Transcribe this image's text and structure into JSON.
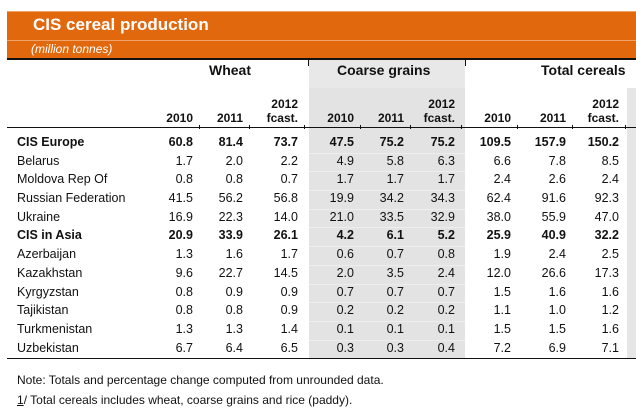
{
  "title": "CIS cereal production",
  "subtitle": "(million tonnes)",
  "groups": [
    {
      "label": "Wheat"
    },
    {
      "label": "Coarse grains"
    },
    {
      "label": "Total cereals"
    }
  ],
  "columns": [
    {
      "line1": "",
      "line2": "2010"
    },
    {
      "line1": "",
      "line2": "2011"
    },
    {
      "line1": "2012",
      "line2": "fcast."
    },
    {
      "line1": "",
      "line2": "2010"
    },
    {
      "line1": "",
      "line2": "2011"
    },
    {
      "line1": "2012",
      "line2": "fcast."
    },
    {
      "line1": "",
      "line2": "2010"
    },
    {
      "line1": "",
      "line2": "2011"
    },
    {
      "line1": "2012",
      "line2": "fcast."
    }
  ],
  "rows": [
    {
      "name": "CIS Europe",
      "bold": true,
      "values": [
        "60.8",
        "81.4",
        "73.7",
        "47.5",
        "75.2",
        "75.2",
        "109.5",
        "157.9",
        "150.2"
      ]
    },
    {
      "name": "Belarus",
      "bold": false,
      "values": [
        "1.7",
        "2.0",
        "2.2",
        "4.9",
        "5.8",
        "6.3",
        "6.6",
        "7.8",
        "8.5"
      ]
    },
    {
      "name": "Moldova Rep Of",
      "bold": false,
      "values": [
        "0.8",
        "0.8",
        "0.7",
        "1.7",
        "1.7",
        "1.7",
        "2.4",
        "2.6",
        "2.4"
      ]
    },
    {
      "name": "Russian Federation",
      "bold": false,
      "values": [
        "41.5",
        "56.2",
        "56.8",
        "19.9",
        "34.2",
        "34.3",
        "62.4",
        "91.6",
        "92.3"
      ]
    },
    {
      "name": "Ukraine",
      "bold": false,
      "values": [
        "16.9",
        "22.3",
        "14.0",
        "21.0",
        "33.5",
        "32.9",
        "38.0",
        "55.9",
        "47.0"
      ]
    },
    {
      "name": "CIS in Asia",
      "bold": true,
      "values": [
        "20.9",
        "33.9",
        "26.1",
        "4.2",
        "6.1",
        "5.2",
        "25.9",
        "40.9",
        "32.2"
      ]
    },
    {
      "name": "Azerbaijan",
      "bold": false,
      "values": [
        "1.3",
        "1.6",
        "1.7",
        "0.6",
        "0.7",
        "0.8",
        "1.9",
        "2.4",
        "2.5"
      ]
    },
    {
      "name": "Kazakhstan",
      "bold": false,
      "values": [
        "9.6",
        "22.7",
        "14.5",
        "2.0",
        "3.5",
        "2.4",
        "12.0",
        "26.6",
        "17.3"
      ]
    },
    {
      "name": "Kyrgyzstan",
      "bold": false,
      "values": [
        "0.8",
        "0.9",
        "0.9",
        "0.7",
        "0.7",
        "0.7",
        "1.5",
        "1.6",
        "1.6"
      ]
    },
    {
      "name": "Tajikistan",
      "bold": false,
      "values": [
        "0.8",
        "0.8",
        "0.9",
        "0.2",
        "0.2",
        "0.2",
        "1.1",
        "1.0",
        "1.2"
      ]
    },
    {
      "name": "Turkmenistan",
      "bold": false,
      "values": [
        "1.3",
        "1.3",
        "1.4",
        "0.1",
        "0.1",
        "0.1",
        "1.5",
        "1.5",
        "1.6"
      ]
    },
    {
      "name": "Uzbekistan",
      "bold": false,
      "values": [
        "6.7",
        "6.4",
        "6.5",
        "0.3",
        "0.3",
        "0.4",
        "7.2",
        "6.9",
        "7.1"
      ]
    }
  ],
  "notes": {
    "note": "Note: Totals and percentage change computed from unrounded data.",
    "footnote_number": "1",
    "footnote_text": "/ Total cereals includes wheat, coarse grains and rice (paddy)."
  },
  "colors": {
    "banner": "#e2680d",
    "shaded_column_group": "#e3e3e3"
  }
}
